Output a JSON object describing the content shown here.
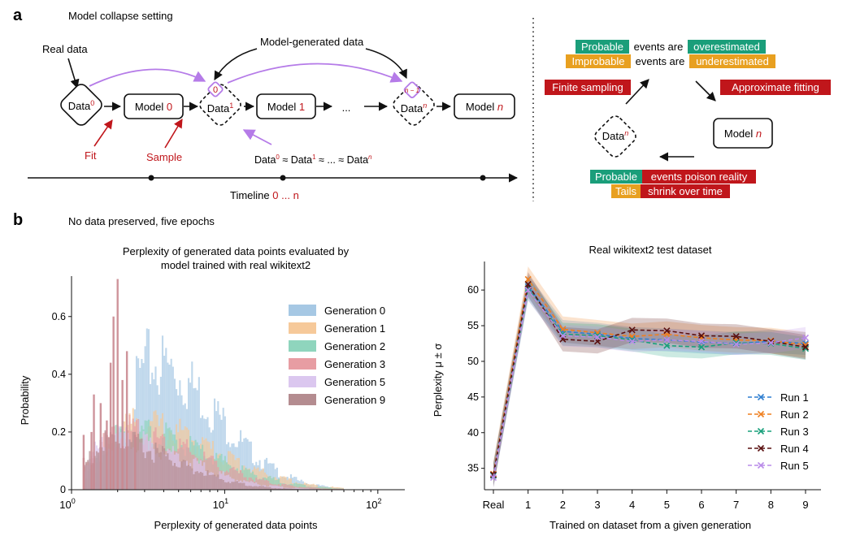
{
  "panel_a": {
    "letter": "a",
    "title": "Model collapse setting",
    "real_data": "Real data",
    "model_generated_data": "Model-generated data",
    "data_label": "Data",
    "sup_0": "0",
    "sup_1": "1",
    "sup_n": "n",
    "sup_n_minus_1": "n − 1",
    "model_label": "Model",
    "num_0": "0",
    "num_1": "1",
    "num_n": "n",
    "ellipsis": "...",
    "fit": "Fit",
    "sample": "Sample",
    "approx_eq": "≈",
    "approx_dots": "≈ ... ≈",
    "timeline_label": "Timeline",
    "timeline_range": "0 ... n",
    "cycle": {
      "probable": "Probable",
      "events_are": "events are",
      "overestimated": "overestimated",
      "improbable": "Improbable",
      "underestimated": "underestimated",
      "finite_sampling": "Finite sampling",
      "approximate_fitting": "Approximate fitting",
      "poison": "events poison reality",
      "tails": "Tails",
      "shrink": "shrink over time"
    },
    "colors": {
      "green": "#1a9e7a",
      "orange": "#e8a020",
      "red": "#c0161b",
      "purple": "#b57be8"
    }
  },
  "panel_b": {
    "letter": "b",
    "title": "No data preserved, five epochs"
  },
  "chart_data": [
    {
      "type": "bar",
      "title": "Perplexity of generated data points evaluated by model trained with real wikitext2",
      "title_lines": [
        "Perplexity of generated data points evaluated by",
        "model trained with real wikitext2"
      ],
      "xlabel": "Perplexity of generated data points",
      "ylabel": "Probability",
      "x_scale": "log",
      "xlim": [
        1,
        150
      ],
      "ylim": [
        0,
        0.74
      ],
      "xticks": [
        1,
        10,
        100
      ],
      "xtick_labels": [
        {
          "base": "10",
          "exp": "0"
        },
        {
          "base": "10",
          "exp": "1"
        },
        {
          "base": "10",
          "exp": "2"
        }
      ],
      "yticks": [
        0,
        0.2,
        0.4,
        0.6
      ],
      "ytick_labels": [
        "0",
        "0.2",
        "0.4",
        "0.6"
      ],
      "legend_position": "top-right",
      "series": [
        {
          "name": "Generation 0",
          "color": "#a6c8e4",
          "mode": 3.3,
          "peak": 0.37,
          "spread": 0.42,
          "tail": 0.03
        },
        {
          "name": "Generation 1",
          "color": "#f6c99a",
          "mode": 2.7,
          "peak": 0.19,
          "spread": 0.5,
          "tail": 0.02
        },
        {
          "name": "Generation 2",
          "color": "#8fd5bd",
          "mode": 2.4,
          "peak": 0.17,
          "spread": 0.5,
          "tail": 0.02
        },
        {
          "name": "Generation 3",
          "color": "#e79da3",
          "mode": 2.1,
          "peak": 0.17,
          "spread": 0.48,
          "tail": 0.02
        },
        {
          "name": "Generation 5",
          "color": "#dbc7ef",
          "mode": 1.9,
          "peak": 0.15,
          "spread": 0.45,
          "tail": 0.02
        },
        {
          "name": "Generation 9",
          "color": "#b48c90",
          "mode": 1.8,
          "peak": 0.14,
          "spread": 0.42,
          "tail": 0.02
        }
      ],
      "spikes": [
        {
          "x": 1.2,
          "y": 0.19
        },
        {
          "x": 1.2,
          "y": 0.11
        },
        {
          "x": 1.35,
          "y": 0.2
        },
        {
          "x": 1.4,
          "y": 0.33
        },
        {
          "x": 1.55,
          "y": 0.3
        },
        {
          "x": 1.7,
          "y": 0.24
        },
        {
          "x": 1.8,
          "y": 0.44
        },
        {
          "x": 1.88,
          "y": 0.6
        },
        {
          "x": 2.0,
          "y": 0.73
        },
        {
          "x": 2.15,
          "y": 0.38
        },
        {
          "x": 2.3,
          "y": 0.48
        },
        {
          "x": 2.6,
          "y": 0.19
        }
      ]
    },
    {
      "type": "line",
      "title": "Real wikitext2 test dataset",
      "xlabel": "Trained on dataset from a given generation",
      "ylabel": "Perplexity μ ± σ",
      "categories": [
        "Real",
        "1",
        "2",
        "3",
        "4",
        "5",
        "6",
        "7",
        "8",
        "9"
      ],
      "ylim": [
        32,
        64
      ],
      "yticks": [
        35,
        40,
        45,
        50,
        55,
        60
      ],
      "legend_position": "bottom-right",
      "series": [
        {
          "name": "Run 1",
          "color": "#2f7fd0",
          "values": [
            34.0,
            60.5,
            54.2,
            53.8,
            53.2,
            53.0,
            52.7,
            52.5,
            52.8,
            52.5
          ],
          "std": 1.6
        },
        {
          "name": "Run 2",
          "color": "#ef7f1f",
          "values": [
            34.2,
            61.5,
            54.5,
            54.0,
            53.5,
            53.8,
            53.3,
            53.0,
            52.9,
            52.3
          ],
          "std": 1.8
        },
        {
          "name": "Run 3",
          "color": "#19a07c",
          "values": [
            34.0,
            60.2,
            53.8,
            53.6,
            53.0,
            52.2,
            52.0,
            52.6,
            52.5,
            51.8
          ],
          "std": 1.6
        },
        {
          "name": "Run 4",
          "color": "#5a1010",
          "values": [
            34.1,
            60.8,
            53.1,
            52.8,
            54.4,
            54.3,
            53.6,
            53.5,
            52.8,
            52.0
          ],
          "std": 1.7
        },
        {
          "name": "Run 5",
          "color": "#b98be8",
          "values": [
            33.7,
            60.0,
            53.6,
            53.4,
            52.8,
            53.0,
            52.8,
            52.4,
            52.6,
            53.3
          ],
          "std": 1.5
        }
      ]
    }
  ]
}
